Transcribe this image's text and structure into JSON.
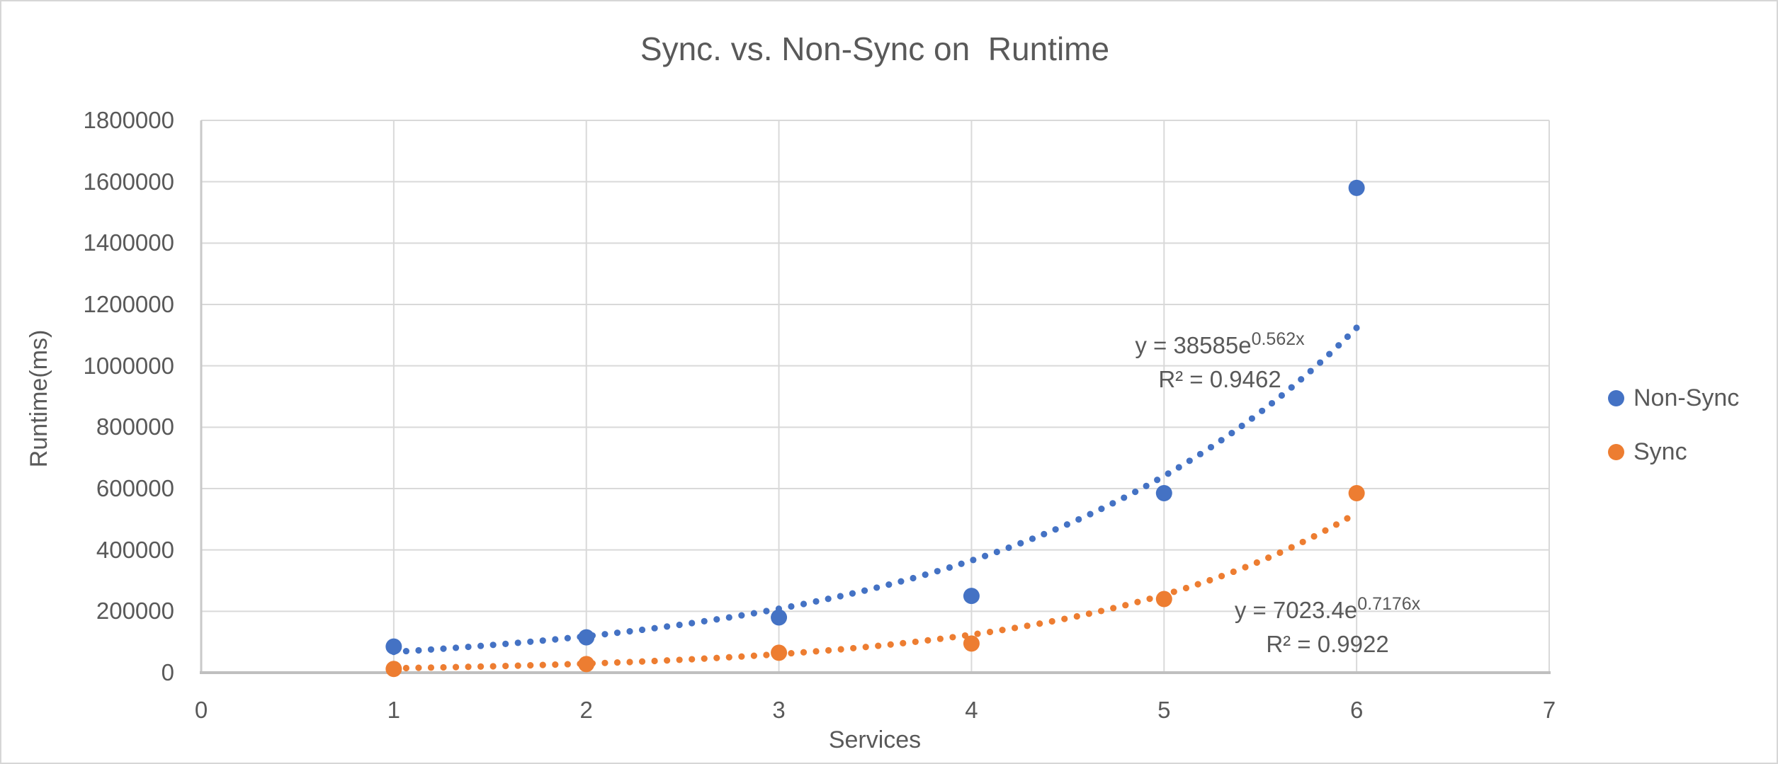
{
  "title": "Sync. vs. Non-Sync on  Runtime",
  "chart_data": {
    "type": "scatter",
    "title": "Sync. vs. Non-Sync on  Runtime",
    "xlabel": "Services",
    "ylabel": "Runtime(ms)",
    "xlim": [
      0,
      7
    ],
    "ylim": [
      0,
      1800000
    ],
    "x_ticks": [
      0,
      1,
      2,
      3,
      4,
      5,
      6,
      7
    ],
    "y_ticks": [
      0,
      200000,
      400000,
      600000,
      800000,
      1000000,
      1200000,
      1400000,
      1600000,
      1800000
    ],
    "grid": true,
    "legend_position": "right",
    "x": [
      1,
      2,
      3,
      4,
      5,
      6
    ],
    "series": [
      {
        "name": "Non-Sync",
        "color": "#4472C4",
        "values": [
          85000,
          115000,
          180000,
          250000,
          585000,
          1580000
        ],
        "trendline": {
          "type": "exponential",
          "a": 38585,
          "b": 0.562,
          "x_start": 1,
          "x_end": 6,
          "equation_base": "y = 38585e",
          "equation_exponent": "0.562x",
          "r2_label": "R² = 0.9462"
        }
      },
      {
        "name": "Sync",
        "color": "#ED7D31",
        "values": [
          12000,
          28000,
          65000,
          95000,
          240000,
          585000
        ],
        "trendline": {
          "type": "exponential",
          "a": 7023.4,
          "b": 0.7176,
          "x_start": 1,
          "x_end": 6,
          "equation_base": "y = 7023.4e",
          "equation_exponent": "0.7176x",
          "r2_label": "R² = 0.9922"
        }
      }
    ]
  },
  "legend": {
    "items": [
      {
        "label": "Non-Sync",
        "color": "#4472C4"
      },
      {
        "label": "Sync",
        "color": "#ED7D31"
      }
    ]
  },
  "colors": {
    "text": "#595959",
    "gridline": "#D9D9D9",
    "axis": "#BFBFBF",
    "non_sync": "#4472C4",
    "sync": "#ED7D31"
  }
}
